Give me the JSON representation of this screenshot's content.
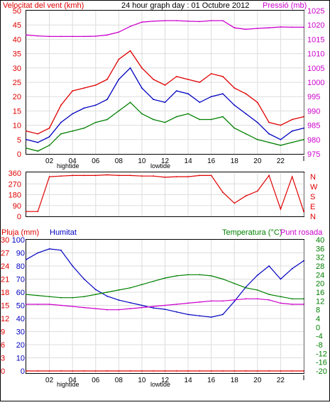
{
  "chart_data": [
    {
      "type": "line",
      "title": "24 hour graph day : 01 Octubre 2012",
      "left_axis_label": "Velocitat del vent (kmh)",
      "right_axis_label": "Pressió (mb)",
      "x_ticks": [
        "02",
        "04",
        "06",
        "08",
        "10",
        "12",
        "14",
        "16",
        "18",
        "20",
        "22",
        ""
      ],
      "x_markers": [
        "hightide",
        "lowtide"
      ],
      "left_ticks": [
        "0",
        "5",
        "10",
        "15",
        "20",
        "25",
        "30",
        "35",
        "40",
        "45",
        "50"
      ],
      "right_ticks": [
        "975",
        "980",
        "985",
        "990",
        "995",
        "1000",
        "1005",
        "1010",
        "1015",
        "1020",
        "1025"
      ],
      "ylim_left": [
        0,
        50
      ],
      "ylim_right": [
        975,
        1025
      ],
      "x": [
        0,
        1,
        2,
        3,
        4,
        5,
        6,
        7,
        8,
        9,
        10,
        11,
        12,
        13,
        14,
        15,
        16,
        17,
        18,
        19,
        20,
        21,
        22,
        23,
        24
      ],
      "series": [
        {
          "name": "wind-gust",
          "color": "#e00000",
          "values": [
            8,
            7,
            9,
            17,
            22,
            23,
            24,
            26,
            33,
            36,
            30,
            26,
            24,
            27,
            26,
            25,
            28,
            27,
            23,
            21,
            18,
            11,
            10,
            12,
            13
          ]
        },
        {
          "name": "wind-average",
          "color": "#0000c0",
          "values": [
            5,
            4,
            6,
            11,
            14,
            16,
            17,
            19,
            26,
            30,
            23,
            19,
            18,
            22,
            21,
            18,
            20,
            21,
            17,
            14,
            11,
            7,
            5,
            8,
            9
          ]
        },
        {
          "name": "wind-minimum",
          "color": "#008000",
          "values": [
            2,
            1,
            3,
            7,
            8,
            9,
            11,
            12,
            15,
            18,
            14,
            12,
            11,
            13,
            14,
            12,
            12,
            13,
            9,
            7,
            5,
            4,
            3,
            4,
            5
          ]
        },
        {
          "name": "pressure",
          "color": "#cc00cc",
          "values": [
            1016.5,
            1016.2,
            1016.0,
            1016.0,
            1016.0,
            1016.0,
            1016.1,
            1016.5,
            1017.5,
            1019.5,
            1021.0,
            1021.3,
            1021.5,
            1021.5,
            1021.3,
            1021.2,
            1021.5,
            1021.5,
            1019.0,
            1018.5,
            1018.8,
            1019.0,
            1019.3,
            1019.2,
            1019.2
          ]
        }
      ]
    },
    {
      "type": "line",
      "y_ticks": [
        "0",
        "90",
        "180",
        "270",
        "360"
      ],
      "right_labels": [
        "N",
        "W",
        "S",
        "E",
        "N"
      ],
      "ylim": [
        0,
        360
      ],
      "x": [
        0,
        1,
        2,
        3,
        4,
        5,
        6,
        7,
        8,
        9,
        10,
        11,
        12,
        13,
        14,
        15,
        16,
        17,
        18,
        19,
        20,
        21,
        22,
        23,
        24
      ],
      "series": [
        {
          "name": "wind-direction",
          "color": "#e00000",
          "values": [
            40,
            40,
            330,
            335,
            340,
            340,
            340,
            345,
            340,
            340,
            335,
            335,
            325,
            330,
            330,
            340,
            340,
            200,
            110,
            170,
            210,
            340,
            60,
            330,
            40
          ]
        }
      ]
    },
    {
      "type": "line",
      "label_rain": "Pluja (mm)",
      "label_humidity": "Humitat",
      "label_temperature": "Temperatura (°C)",
      "label_dewpoint": "Punt rosada",
      "rain_ticks": [
        "0",
        "3",
        "6",
        "9",
        "12",
        "15",
        "18",
        "21",
        "24",
        "27",
        "30"
      ],
      "humidity_ticks": [
        "0",
        "10",
        "20",
        "30",
        "40",
        "50",
        "60",
        "70",
        "80",
        "90",
        "100"
      ],
      "temp_ticks": [
        "-20",
        "-16",
        "-12",
        "-8",
        "-4",
        "0",
        "4",
        "8",
        "12",
        "16",
        "20",
        "24",
        "28",
        "32",
        "36",
        "40"
      ],
      "ylim_rain": [
        0,
        30
      ],
      "ylim_humidity": [
        0,
        100
      ],
      "ylim_temp": [
        -20,
        40
      ],
      "x": [
        0,
        1,
        2,
        3,
        4,
        5,
        6,
        7,
        8,
        9,
        10,
        11,
        12,
        13,
        14,
        15,
        16,
        17,
        18,
        19,
        20,
        21,
        22,
        23,
        24
      ],
      "series": [
        {
          "name": "humidity",
          "color": "#0000c0",
          "values": [
            85,
            90,
            93,
            92,
            80,
            70,
            62,
            57,
            54,
            52,
            50,
            48,
            47,
            45,
            43,
            42,
            41,
            43,
            53,
            64,
            73,
            80,
            70,
            78,
            84
          ]
        },
        {
          "name": "temperature",
          "color": "#008000",
          "values": [
            15,
            14.5,
            14,
            13.5,
            13.5,
            14,
            15,
            16,
            17,
            18,
            19.5,
            21,
            22.5,
            23.5,
            24,
            24,
            23.5,
            22,
            20,
            18,
            17,
            15,
            14,
            13,
            13
          ]
        },
        {
          "name": "dewpoint",
          "color": "#cc00cc",
          "values": [
            10.5,
            10.5,
            10.5,
            10,
            9.5,
            9,
            8.5,
            8,
            8,
            8.5,
            9,
            9.5,
            10,
            10.5,
            11,
            11.5,
            12,
            12,
            12.5,
            13,
            13,
            12.5,
            11,
            10.5,
            10.5
          ]
        },
        {
          "name": "rain",
          "color": "#e00000",
          "values": [
            0,
            0,
            0,
            0,
            0,
            0,
            0,
            0,
            0,
            0,
            0,
            0,
            0,
            0,
            0,
            0,
            0,
            0,
            0,
            0,
            0,
            0,
            0,
            0,
            0
          ]
        }
      ]
    }
  ]
}
